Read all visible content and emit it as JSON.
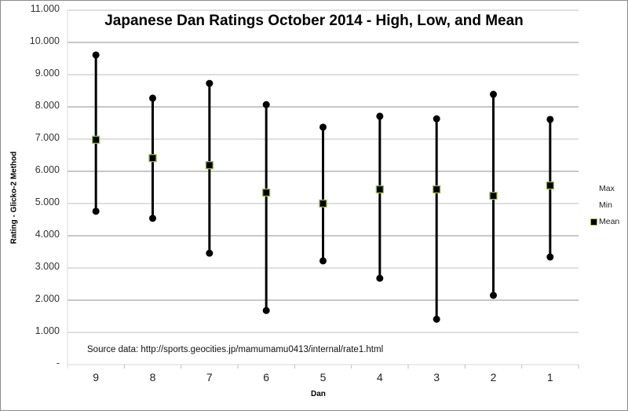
{
  "chart_data": {
    "type": "stock-high-low",
    "title": "Japanese Dan Ratings October 2014 - High, Low, and Mean",
    "xlabel": "Dan",
    "ylabel": "Rating - Glicko-2 Method",
    "categories": [
      "9",
      "8",
      "7",
      "6",
      "5",
      "4",
      "3",
      "2",
      "1"
    ],
    "series": [
      {
        "name": "Max",
        "values": [
          9.61,
          8.27,
          8.73,
          8.07,
          7.37,
          7.71,
          7.63,
          8.39,
          7.61
        ]
      },
      {
        "name": "Min",
        "values": [
          4.76,
          4.54,
          3.46,
          1.68,
          3.22,
          2.68,
          1.41,
          2.15,
          3.34
        ]
      },
      {
        "name": "Mean",
        "values": [
          6.98,
          6.41,
          6.19,
          5.34,
          5.0,
          5.44,
          5.44,
          5.24,
          5.56
        ]
      }
    ],
    "ylim": [
      0,
      11
    ],
    "yticks": [
      "-",
      "1.000",
      "2.000",
      "3.000",
      "4.000",
      "5.000",
      "6.000",
      "7.000",
      "8.000",
      "9.000",
      "10.000",
      "11.000"
    ],
    "grid": true,
    "legend_position": "right",
    "annotations": [
      "Source data: http://sports.geocities.jp/mamumamu0413/internal/rate1.html"
    ]
  },
  "colors": {
    "line": "#000000",
    "marker_max_min": "#000000",
    "marker_mean_fill": "#000000",
    "marker_mean_border": "#9bbb59",
    "grid": "#a6a6a6",
    "frame": "#8c8c8c"
  },
  "legend": {
    "items": [
      {
        "label": "Max"
      },
      {
        "label": "Min"
      },
      {
        "label": "Mean"
      }
    ]
  }
}
